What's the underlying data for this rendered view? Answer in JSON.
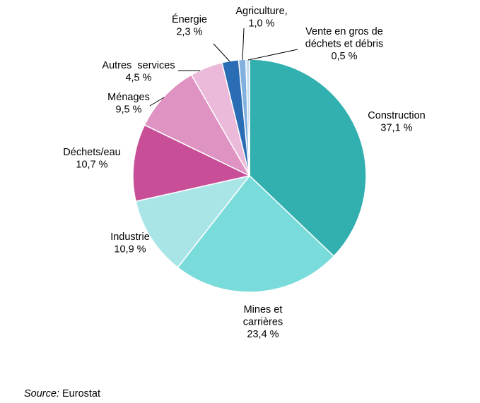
{
  "chart_data": {
    "type": "pie",
    "slices": [
      {
        "label": [
          "Construction"
        ],
        "value": 37.1,
        "value_label": "37,1 %",
        "color": "#32afaf"
      },
      {
        "label": [
          "Mines et",
          "carrières"
        ],
        "value": 23.4,
        "value_label": "23,4 %",
        "color": "#7adbdb"
      },
      {
        "label": [
          "Industrie"
        ],
        "value": 10.9,
        "value_label": "10,9 %",
        "color": "#a9e5e7"
      },
      {
        "label": [
          "Déchets/eau"
        ],
        "value": 10.7,
        "value_label": "10,7 %",
        "color": "#c84f97"
      },
      {
        "label": [
          "Ménages"
        ],
        "value": 9.5,
        "value_label": "9,5 %",
        "color": "#df93c3"
      },
      {
        "label": [
          "Autres  services"
        ],
        "value": 4.5,
        "value_label": "4,5 %",
        "color": "#ebb9d9"
      },
      {
        "label": [
          "Énergie"
        ],
        "value": 2.3,
        "value_label": "2,3 %",
        "color": "#2a6db5"
      },
      {
        "label": [
          "Agriculture,"
        ],
        "value": 1.0,
        "value_label": "1,0 %",
        "color": "#82b1df"
      },
      {
        "label": [
          "Vente en gros de",
          "déchets et débris"
        ],
        "value": 0.5,
        "value_label": "0,5 %",
        "color": "#c3dcf2"
      }
    ]
  },
  "source": {
    "label": "Source:",
    "value": "Eurostat"
  }
}
